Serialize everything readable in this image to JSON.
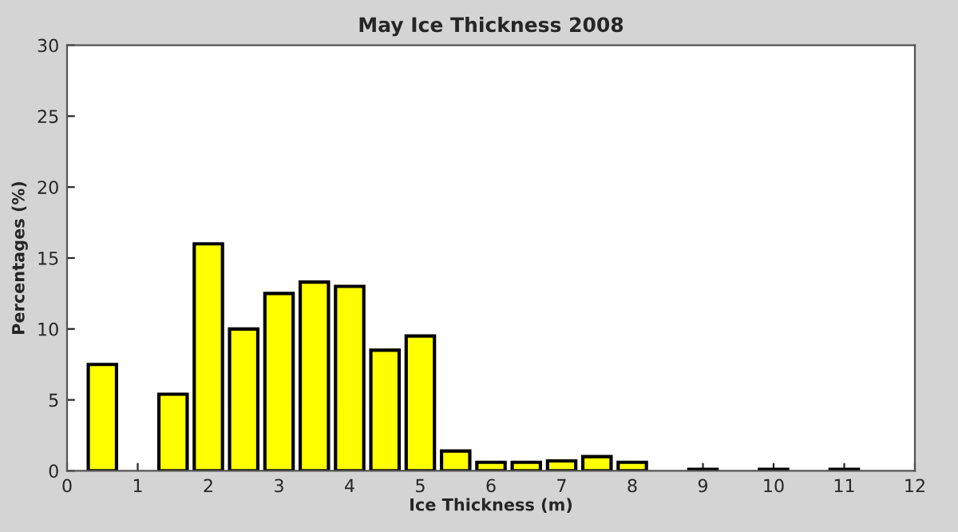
{
  "chart_data": {
    "type": "bar",
    "title": "May Ice Thickness 2008",
    "xlabel": "Ice Thickness (m)",
    "ylabel": "Percentages (%)",
    "x": [
      0.5,
      1,
      1.5,
      2,
      2.5,
      3,
      3.5,
      4,
      4.5,
      5,
      5.5,
      6,
      6.5,
      7,
      7.5,
      8,
      8.5,
      9,
      9.5,
      10,
      10.5,
      11
    ],
    "values": [
      7.5,
      null,
      5.4,
      16,
      10,
      12.5,
      13.3,
      13,
      8.5,
      9.5,
      1.4,
      0.6,
      0.6,
      0.7,
      1.0,
      0.6,
      null,
      0.1,
      null,
      0.1,
      null,
      0.1
    ],
    "color": "#ffff00",
    "xlim": [
      0,
      12
    ],
    "xticks": [
      0,
      1,
      2,
      3,
      4,
      5,
      6,
      7,
      8,
      9,
      10,
      11,
      12
    ],
    "ylim": [
      0,
      30
    ],
    "yticks": [
      0,
      5,
      10,
      15,
      20,
      25,
      30
    ],
    "grid": false
  }
}
